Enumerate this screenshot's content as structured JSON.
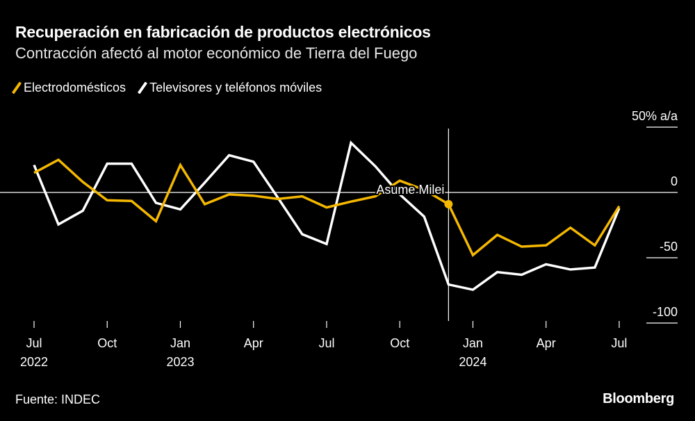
{
  "header": {
    "title": "Recuperación en fabricación de productos electrónicos",
    "subtitle": "Contracción afectó al motor económico de Tierra del Fuego"
  },
  "footer": {
    "source": "Fuente: INDEC",
    "logo": "Bloomberg"
  },
  "chart_data": {
    "type": "line",
    "x": [
      "2022-07",
      "2022-08",
      "2022-09",
      "2022-10",
      "2022-11",
      "2022-12",
      "2023-01",
      "2023-02",
      "2023-03",
      "2023-04",
      "2023-05",
      "2023-06",
      "2023-07",
      "2023-08",
      "2023-09",
      "2023-10",
      "2023-11",
      "2023-12",
      "2024-01",
      "2024-02",
      "2024-03",
      "2024-04",
      "2024-05",
      "2024-06",
      "2024-07"
    ],
    "series": [
      {
        "name": "Electrodomésticos",
        "color": "#f5b800",
        "values": [
          15,
          25,
          8,
          -6,
          -6.5,
          -22,
          21,
          -9,
          -1.5,
          -2.5,
          -5,
          -3,
          -11.5,
          -7,
          -3,
          9,
          2,
          -9,
          -48,
          -32.5,
          -41.5,
          -40.5,
          -27,
          -40.5,
          -10.5
        ]
      },
      {
        "name": "Televisores y teléfonos móviles",
        "color": "#ffffff",
        "values": [
          21,
          -24.5,
          -14,
          22,
          22,
          -8,
          -13,
          7.5,
          28.5,
          23.5,
          -4,
          -32,
          -39.5,
          38,
          20,
          -1.5,
          -18.5,
          -70.5,
          -74.5,
          -61,
          -63,
          -55,
          -59,
          -57.5,
          -12
        ]
      }
    ],
    "ylim": [
      -100,
      50
    ],
    "yticks": [
      "50% a/a",
      "0",
      "-50",
      "-100"
    ],
    "ytick_values": [
      50,
      0,
      -50,
      -100
    ],
    "xticks": [
      {
        "x": "2022-07",
        "label": "Jul",
        "year": "2022"
      },
      {
        "x": "2022-10",
        "label": "Oct",
        "year": ""
      },
      {
        "x": "2023-01",
        "label": "Jan",
        "year": "2023"
      },
      {
        "x": "2023-04",
        "label": "Apr",
        "year": ""
      },
      {
        "x": "2023-07",
        "label": "Jul",
        "year": ""
      },
      {
        "x": "2023-10",
        "label": "Oct",
        "year": ""
      },
      {
        "x": "2024-01",
        "label": "Jan",
        "year": "2024"
      },
      {
        "x": "2024-04",
        "label": "Apr",
        "year": ""
      },
      {
        "x": "2024-07",
        "label": "Jul",
        "year": ""
      }
    ],
    "annotation": {
      "x": "2023-12",
      "label": "Asume Milei"
    },
    "legend": "top-left",
    "grid": false
  }
}
